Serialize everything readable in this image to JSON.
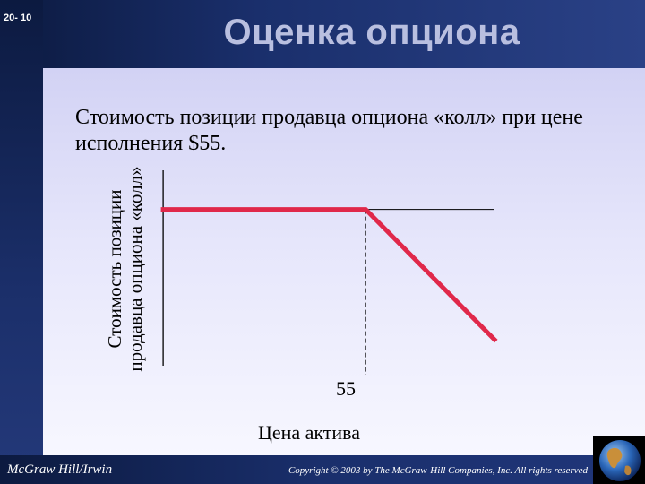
{
  "slide": {
    "number": "20- 10",
    "title": "Оценка опциона",
    "subtitle": "Стоимость позиции продавца опциона «колл» при цене исполнения $55."
  },
  "chart_data": {
    "type": "line",
    "ylabel": "Стоимость позиции продавца опциона «колл»",
    "xlabel": "Цена актива",
    "x_ticks": [
      "55"
    ],
    "strike": 55,
    "series": [
      {
        "x": [
          0,
          55,
          90
        ],
        "y": [
          2.5,
          2.5,
          -2.5
        ]
      }
    ],
    "xlim": [
      -1,
      90
    ],
    "ylim": [
      -3.5,
      4
    ],
    "reference_lines": {
      "zero_line": "horizontal",
      "strike_line": "dashed-vertical"
    },
    "colors": {
      "payoff": "#e0284a",
      "axis": "#000000"
    }
  },
  "footer": {
    "publisher": "McGraw Hill/Irwin",
    "copyright": "Copyright © 2003 by The McGraw-Hill Companies, Inc. All rights reserved"
  },
  "icons": {
    "corner": "globe-icon"
  }
}
